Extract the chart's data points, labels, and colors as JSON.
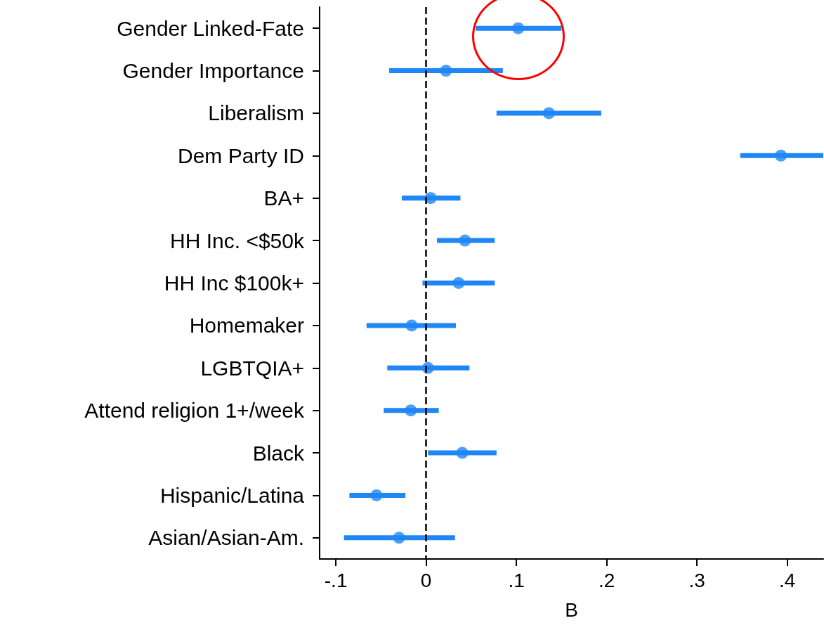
{
  "chart_data": {
    "type": "scatter",
    "orientation": "horizontal",
    "xlabel": "B",
    "categories": [
      "Gender Linked-Fate",
      "Gender Importance",
      "Liberalism",
      "Dem Party ID",
      "BA+",
      "HH Inc. <$50k",
      "HH Inc $100k+",
      "Homemaker",
      "LGBTQIA+",
      "Attend religion 1+/week",
      "Black",
      "Hispanic/Latina",
      "Asian/Asian-Am."
    ],
    "values": [
      0.102,
      0.022,
      0.136,
      0.393,
      0.005,
      0.043,
      0.036,
      -0.016,
      0.002,
      -0.017,
      0.04,
      -0.055,
      -0.03
    ],
    "errors": [
      [
        0.055,
        0.15
      ],
      [
        -0.041,
        0.085
      ],
      [
        0.078,
        0.194
      ],
      [
        0.348,
        0.44
      ],
      [
        -0.027,
        0.038
      ],
      [
        0.012,
        0.076
      ],
      [
        -0.004,
        0.076
      ],
      [
        -0.066,
        0.033
      ],
      [
        -0.043,
        0.048
      ],
      [
        -0.047,
        0.014
      ],
      [
        0.002,
        0.078
      ],
      [
        -0.085,
        -0.023
      ],
      [
        -0.091,
        0.032
      ]
    ],
    "color": "#1f86f5",
    "marker": "circle",
    "grid": false,
    "xlim": [
      -0.118,
      0.44
    ],
    "xticks": [
      {
        "value": -0.1,
        "label": "-.1"
      },
      0,
      {
        "value": 0.1,
        "label": ".1"
      },
      {
        "value": 0.2,
        "label": ".2"
      },
      {
        "value": 0.3,
        "label": ".3"
      },
      {
        "value": 0.4,
        "label": ".4"
      }
    ],
    "ref_lines": [
      {
        "axis": "x",
        "value": 0,
        "color": "#000000",
        "line_style": "dashed"
      }
    ]
  }
}
